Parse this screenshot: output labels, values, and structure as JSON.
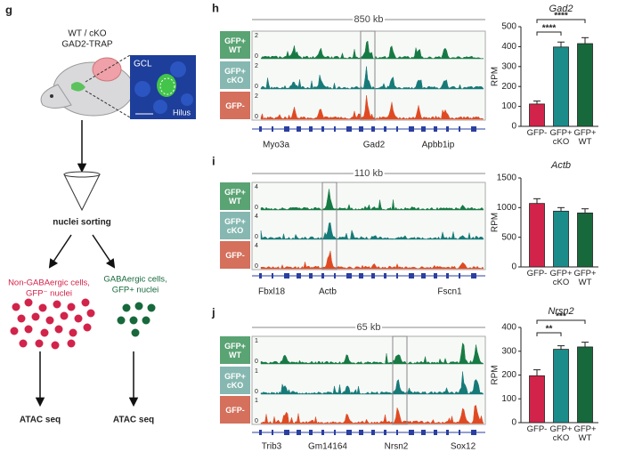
{
  "panel_g": {
    "label": "g",
    "title_lines": [
      "WT / cKO",
      "GAD2-TRAP"
    ],
    "inset": {
      "region": "GCL",
      "subregion": "Hilus"
    },
    "step": "nuclei sorting",
    "non_gaba": [
      "Non-GABAergic cells,",
      "GFP⁻ nuclei"
    ],
    "gaba": [
      "GABAergic cells,",
      "GFP+ nuclei"
    ],
    "assay_left": "ATAC seq",
    "assay_right": "ATAC seq"
  },
  "tracks": [
    {
      "label": "h",
      "scale": "850 kb",
      "ymin": "0",
      "rows": [
        {
          "name": "GFP+ WT",
          "ymax": "2"
        },
        {
          "name": "GFP+ cKO",
          "ymax": "2"
        },
        {
          "name": "GFP-",
          "ymax": "2"
        }
      ],
      "genes": [
        "Myo3a",
        "Gad2",
        "Apbb1ip"
      ]
    },
    {
      "label": "i",
      "scale": "110 kb",
      "ymin": "0",
      "rows": [
        {
          "name": "GFP+ WT",
          "ymax": "4"
        },
        {
          "name": "GFP+ cKO",
          "ymax": "4"
        },
        {
          "name": "GFP-",
          "ymax": "4"
        }
      ],
      "genes": [
        "Fbxl18",
        "Actb",
        "Fscn1"
      ]
    },
    {
      "label": "j",
      "scale": "65 kb",
      "ymin": "0",
      "rows": [
        {
          "name": "GFP+ WT",
          "ymax": "1"
        },
        {
          "name": "GFP+ cKO",
          "ymax": "1"
        },
        {
          "name": "GFP-",
          "ymax": "1"
        }
      ],
      "genes": [
        "Trib3",
        "Gm14164",
        "Nrsn2",
        "Sox12"
      ]
    }
  ],
  "chart_data": [
    {
      "type": "bar",
      "title": "Gad2",
      "y_label": "RPM",
      "categories": [
        "GFP-",
        "GFP+ cKO",
        "GFP+ WT"
      ],
      "values": [
        112,
        398,
        415
      ],
      "errors": [
        15,
        25,
        30
      ],
      "colors": [
        "#d2234a",
        "#1c8c8a",
        "#17693c"
      ],
      "ylim": [
        0,
        500
      ],
      "yticks": [
        0,
        100,
        200,
        300,
        400,
        500
      ],
      "significance": [
        "****",
        "****"
      ]
    },
    {
      "type": "bar",
      "title": "Actb",
      "y_label": "RPM",
      "categories": [
        "GFP-",
        "GFP+ cKO",
        "GFP+ WT"
      ],
      "values": [
        1070,
        940,
        910
      ],
      "errors": [
        80,
        60,
        70
      ],
      "colors": [
        "#d2234a",
        "#1c8c8a",
        "#17693c"
      ],
      "ylim": [
        0,
        1500
      ],
      "yticks": [
        0,
        500,
        1000,
        1500
      ],
      "significance": []
    },
    {
      "type": "bar",
      "title": "Nrsn2",
      "y_label": "RPM",
      "categories": [
        "GFP-",
        "GFP+ cKO",
        "GFP+ WT"
      ],
      "values": [
        197,
        308,
        318
      ],
      "errors": [
        25,
        15,
        20
      ],
      "colors": [
        "#d2234a",
        "#1c8c8a",
        "#17693c"
      ],
      "ylim": [
        0,
        400
      ],
      "yticks": [
        0,
        100,
        200,
        300,
        400
      ],
      "significance": [
        "**",
        "***"
      ]
    }
  ]
}
